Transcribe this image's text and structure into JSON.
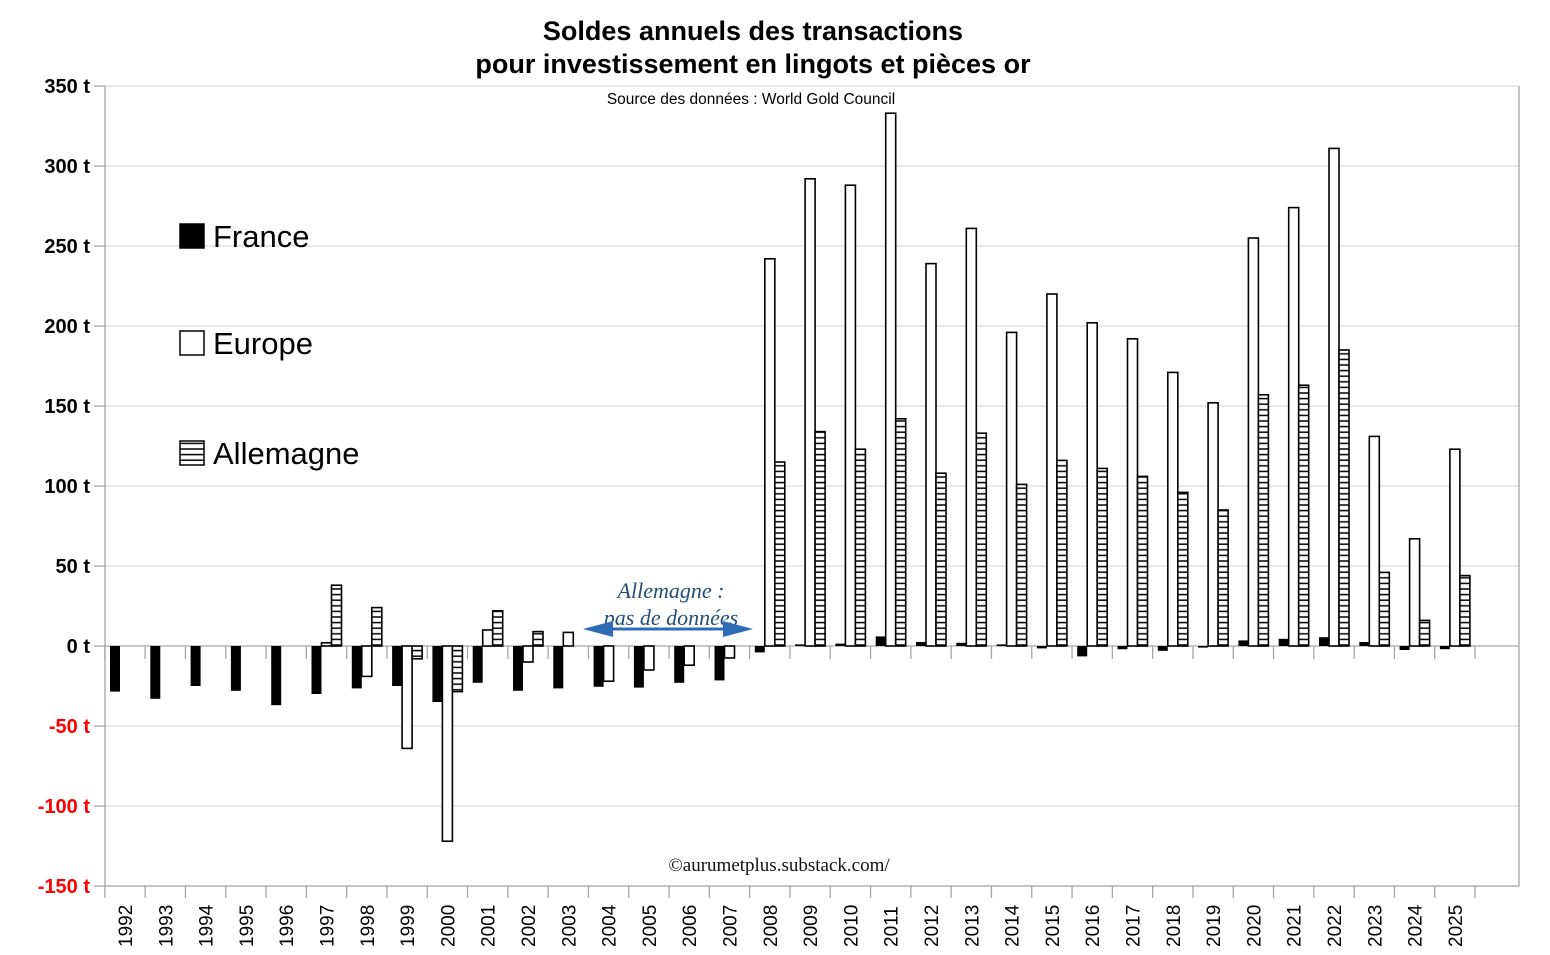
{
  "title": {
    "line1": "Soldes annuels des transactions",
    "line2": "pour investissement en lingots et pièces or"
  },
  "subtitle": "Source des données :  World Gold Council",
  "footer": "©aurumetplus.substack.com/",
  "annotation": {
    "line1": "Allemagne :",
    "line2": "pas de données"
  },
  "legend": [
    {
      "label": "France",
      "swatch": "solid-black"
    },
    {
      "label": "Europe",
      "swatch": "white-outline"
    },
    {
      "label": "Allemagne",
      "swatch": "hatched"
    }
  ],
  "colors": {
    "bar_fill_france": "#000000",
    "bar_fill_europe": "#ffffff",
    "bar_stroke": "#000000",
    "grid": "#d9d9d9",
    "axis": "#a6a6a6",
    "tick_positive": "#000000",
    "tick_negative": "#ff0000",
    "annotation_text": "#1f4e79",
    "annotation_arrow": "#2e6cb5"
  },
  "chart_data": {
    "type": "bar",
    "unit": "t",
    "title": "Soldes annuels des transactions pour investissement en lingots et pièces or",
    "source": "World Gold Council",
    "ylim": [
      -150,
      350
    ],
    "ytick_step": 50,
    "grid": true,
    "legend_position": "upper-left-inside",
    "yticks": [
      {
        "value": 350,
        "label": "350 t"
      },
      {
        "value": 300,
        "label": "300 t"
      },
      {
        "value": 250,
        "label": "250 t"
      },
      {
        "value": 200,
        "label": "200 t"
      },
      {
        "value": 150,
        "label": "150 t"
      },
      {
        "value": 100,
        "label": "100 t"
      },
      {
        "value": 50,
        "label": "50 t"
      },
      {
        "value": 0,
        "label": "0 t"
      },
      {
        "value": -50,
        "label": "-50 t"
      },
      {
        "value": -100,
        "label": "-100 t"
      },
      {
        "value": -150,
        "label": "-150 t"
      }
    ],
    "categories": [
      "1992",
      "1993",
      "1994",
      "1995",
      "1996",
      "1997",
      "1998",
      "1999",
      "2000",
      "2001",
      "2002",
      "2003",
      "2004",
      "2005",
      "2006",
      "2007",
      "2008",
      "2009",
      "2010",
      "2011",
      "2012",
      "2013",
      "2014",
      "2015",
      "2016",
      "2017",
      "2018",
      "2019",
      "2020",
      "2021",
      "2022",
      "2023",
      "2024",
      "2025"
    ],
    "series": [
      {
        "name": "France",
        "style": "solid-black",
        "values": [
          -28.5,
          -33,
          -25,
          -28,
          -37,
          -30,
          -26.5,
          -25,
          -35,
          -23,
          -28,
          -26.5,
          -25.5,
          -26,
          -23,
          -21.5,
          -4,
          1,
          1.5,
          6,
          2.5,
          2,
          1,
          -1.5,
          -6.5,
          -2,
          -3,
          -1,
          3.5,
          4.5,
          5.5,
          2.5,
          -2.5,
          -2
        ]
      },
      {
        "name": "Europe",
        "style": "white-outline",
        "values": [
          null,
          null,
          null,
          null,
          null,
          2,
          -19,
          -64,
          -122,
          10,
          -10,
          8.5,
          -22,
          -15,
          -12,
          -7.5,
          242,
          292,
          288,
          333,
          239,
          261,
          196,
          220,
          202,
          192,
          171,
          152,
          255,
          274,
          311,
          131,
          67,
          123
        ]
      },
      {
        "name": "Allemagne",
        "style": "hatched",
        "values": [
          null,
          null,
          null,
          null,
          null,
          38,
          24,
          -8,
          -28.5,
          22,
          9,
          null,
          null,
          null,
          null,
          null,
          115,
          134,
          123,
          142,
          108,
          133,
          101,
          116,
          111,
          106,
          96,
          85,
          157,
          163,
          185,
          46,
          16,
          44
        ]
      }
    ],
    "annotation_span_years": [
      "2003",
      "2007"
    ]
  }
}
